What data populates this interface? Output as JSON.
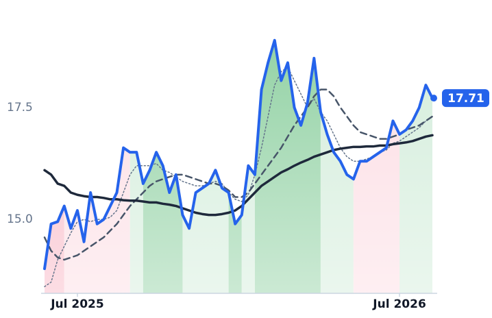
{
  "chart_data": {
    "type": "line",
    "categories": [
      null,
      null,
      null,
      null,
      null,
      "Jul 2025",
      null,
      null,
      null,
      null,
      null,
      null,
      null,
      null,
      null,
      null,
      null,
      null,
      null,
      null,
      null,
      null,
      null,
      null,
      null,
      null,
      null,
      null,
      null,
      null,
      null,
      null,
      null,
      null,
      null,
      null,
      null,
      null,
      null,
      null,
      null,
      null,
      null,
      null,
      null,
      null,
      null,
      null,
      null,
      null,
      null,
      null,
      null,
      null,
      "Jul 2026",
      null,
      null,
      null,
      null,
      null
    ],
    "series": [
      {
        "color": "#2563eb",
        "style": "solid",
        "width": 4,
        "values": [
          13.9,
          14.9,
          14.95,
          15.3,
          14.8,
          15.2,
          14.5,
          15.6,
          14.9,
          15.0,
          15.3,
          15.6,
          16.6,
          16.5,
          16.5,
          15.8,
          16.1,
          16.5,
          16.2,
          15.6,
          16.0,
          15.1,
          14.8,
          15.6,
          15.7,
          15.8,
          16.1,
          15.7,
          15.6,
          14.9,
          15.1,
          16.2,
          16.0,
          17.9,
          18.5,
          19.0,
          18.1,
          18.5,
          17.5,
          17.1,
          17.6,
          18.6,
          17.4,
          16.9,
          16.5,
          16.3,
          16.0,
          15.9,
          16.3,
          16.3,
          16.4,
          16.5,
          16.6,
          17.2,
          16.9,
          17.0,
          17.2,
          17.5,
          18.0,
          17.71
        ]
      },
      {
        "color": "#1e293b",
        "style": "solid",
        "width": 3.5,
        "values": [
          16.1,
          16.0,
          15.8,
          15.75,
          15.6,
          15.55,
          15.52,
          15.5,
          15.5,
          15.48,
          15.45,
          15.45,
          15.43,
          15.42,
          15.42,
          15.4,
          15.38,
          15.38,
          15.35,
          15.33,
          15.3,
          15.25,
          15.2,
          15.15,
          15.12,
          15.1,
          15.1,
          15.12,
          15.15,
          15.2,
          15.3,
          15.45,
          15.6,
          15.75,
          15.85,
          15.95,
          16.05,
          16.12,
          16.2,
          16.27,
          16.33,
          16.4,
          16.45,
          16.5,
          16.55,
          16.58,
          16.6,
          16.62,
          16.62,
          16.63,
          16.63,
          16.65,
          16.65,
          16.68,
          16.7,
          16.72,
          16.75,
          16.8,
          16.85,
          16.88
        ]
      },
      {
        "color": "#475569",
        "style": "dashed",
        "width": 2.5,
        "values": [
          14.6,
          14.3,
          14.15,
          14.1,
          14.15,
          14.2,
          14.3,
          14.4,
          14.5,
          14.6,
          14.75,
          14.9,
          15.1,
          15.3,
          15.45,
          15.6,
          15.75,
          15.85,
          15.9,
          15.95,
          16.0,
          16.0,
          15.95,
          15.9,
          15.85,
          15.8,
          15.8,
          15.75,
          15.65,
          15.5,
          15.5,
          15.6,
          15.8,
          16.0,
          16.2,
          16.4,
          16.6,
          16.85,
          17.1,
          17.3,
          17.5,
          17.75,
          17.9,
          17.9,
          17.75,
          17.5,
          17.3,
          17.1,
          16.95,
          16.9,
          16.85,
          16.8,
          16.8,
          16.85,
          16.9,
          17.0,
          17.05,
          17.1,
          17.2,
          17.3
        ]
      },
      {
        "color": "#64748b",
        "style": "dotted",
        "width": 1.5,
        "values": [
          13.5,
          13.6,
          14.1,
          14.4,
          14.7,
          14.95,
          15.0,
          14.95,
          15.0,
          15.0,
          15.05,
          15.2,
          15.6,
          16.0,
          16.2,
          16.2,
          16.2,
          16.25,
          16.1,
          16.05,
          15.95,
          15.85,
          15.8,
          15.75,
          15.75,
          15.8,
          15.85,
          15.8,
          15.6,
          15.45,
          15.4,
          15.55,
          16.0,
          16.6,
          17.3,
          18.0,
          18.3,
          18.4,
          18.1,
          17.8,
          17.5,
          17.7,
          17.4,
          17.2,
          16.9,
          16.6,
          16.4,
          16.3,
          16.3,
          16.35,
          16.4,
          16.5,
          16.55,
          16.7,
          16.75,
          16.85,
          16.95,
          17.05,
          17.2,
          17.3
        ]
      }
    ],
    "bands": [
      {
        "from": 0,
        "to": 3,
        "color": "#f8b4c3"
      },
      {
        "from": 3,
        "to": 13,
        "color": "#fcdbe2"
      },
      {
        "from": 13,
        "to": 15,
        "color": "#d1ecd9"
      },
      {
        "from": 15,
        "to": 21,
        "color": "#8ccf9f"
      },
      {
        "from": 21,
        "to": 28,
        "color": "#d1ecd9"
      },
      {
        "from": 28,
        "to": 30,
        "color": "#8ccf9f"
      },
      {
        "from": 30,
        "to": 32,
        "color": "#d1ecd9"
      },
      {
        "from": 32,
        "to": 42,
        "color": "#8ccf9f"
      },
      {
        "from": 42,
        "to": 47,
        "color": "#d1ecd9"
      },
      {
        "from": 47,
        "to": 54,
        "color": "#fcdbe2"
      },
      {
        "from": 54,
        "to": 59,
        "color": "#d1ecd9"
      }
    ],
    "ylim": [
      13.35,
      19.9
    ],
    "yticks": [
      {
        "value": 15,
        "label": "15.0"
      },
      17.5
    ],
    "badge_color": "#2563eb"
  }
}
